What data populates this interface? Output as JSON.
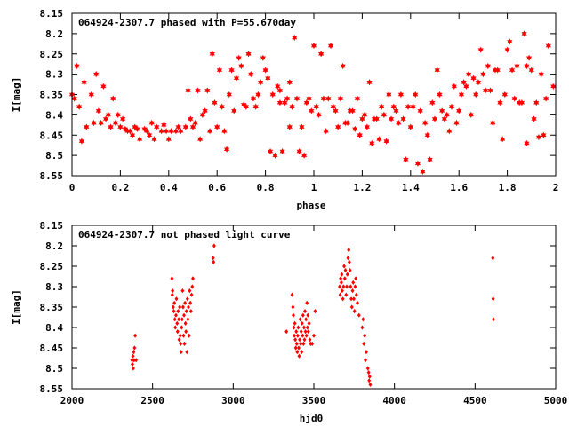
{
  "chart_data": [
    {
      "type": "scatter",
      "title": "064924-2307.7 phased with P=55.670day",
      "xlabel": "phase",
      "ylabel": "I[mag]",
      "xlim": [
        0,
        2
      ],
      "ylim": [
        8.55,
        8.15
      ],
      "y_inverted": true,
      "xticks": [
        "0",
        "0.2",
        "0.4",
        "0.6",
        "0.8",
        "1",
        "1.2",
        "1.4",
        "1.6",
        "1.8",
        "2"
      ],
      "yticks": [
        "8.15",
        "8.2",
        "8.25",
        "8.3",
        "8.35",
        "8.4",
        "8.45",
        "8.5",
        "8.55"
      ],
      "grid": false,
      "legend": "none",
      "marker": "filled-star",
      "color": "#ff0000",
      "points": [
        [
          0.0,
          8.35
        ],
        [
          0.01,
          8.36
        ],
        [
          0.02,
          8.28
        ],
        [
          0.03,
          8.38
        ],
        [
          0.04,
          8.465
        ],
        [
          0.05,
          8.32
        ],
        [
          0.06,
          8.43
        ],
        [
          0.08,
          8.35
        ],
        [
          0.09,
          8.42
        ],
        [
          0.1,
          8.3
        ],
        [
          0.11,
          8.39
        ],
        [
          0.12,
          8.42
        ],
        [
          0.13,
          8.33
        ],
        [
          0.14,
          8.41
        ],
        [
          0.15,
          8.4
        ],
        [
          0.16,
          8.43
        ],
        [
          0.17,
          8.36
        ],
        [
          0.18,
          8.42
        ],
        [
          0.19,
          8.4
        ],
        [
          0.2,
          8.43
        ],
        [
          0.21,
          8.41
        ],
        [
          0.22,
          8.435
        ],
        [
          0.23,
          8.44
        ],
        [
          0.24,
          8.44
        ],
        [
          0.25,
          8.45
        ],
        [
          0.26,
          8.43
        ],
        [
          0.27,
          8.435
        ],
        [
          0.28,
          8.46
        ],
        [
          0.3,
          8.435
        ],
        [
          0.31,
          8.44
        ],
        [
          0.32,
          8.45
        ],
        [
          0.33,
          8.42
        ],
        [
          0.34,
          8.46
        ],
        [
          0.35,
          8.43
        ],
        [
          0.37,
          8.44
        ],
        [
          0.38,
          8.425
        ],
        [
          0.39,
          8.44
        ],
        [
          0.4,
          8.46
        ],
        [
          0.41,
          8.44
        ],
        [
          0.43,
          8.44
        ],
        [
          0.44,
          8.43
        ],
        [
          0.45,
          8.44
        ],
        [
          0.47,
          8.43
        ],
        [
          0.48,
          8.34
        ],
        [
          0.49,
          8.41
        ],
        [
          0.5,
          8.43
        ],
        [
          0.51,
          8.42
        ],
        [
          0.52,
          8.34
        ],
        [
          0.53,
          8.46
        ],
        [
          0.54,
          8.4
        ],
        [
          0.55,
          8.39
        ],
        [
          0.56,
          8.34
        ],
        [
          0.57,
          8.44
        ],
        [
          0.58,
          8.25
        ],
        [
          0.59,
          8.37
        ],
        [
          0.6,
          8.43
        ],
        [
          0.61,
          8.29
        ],
        [
          0.62,
          8.38
        ],
        [
          0.63,
          8.44
        ],
        [
          0.64,
          8.485
        ],
        [
          0.65,
          8.35
        ],
        [
          0.66,
          8.29
        ],
        [
          0.67,
          8.39
        ],
        [
          0.68,
          8.31
        ],
        [
          0.69,
          8.26
        ],
        [
          0.7,
          8.28
        ],
        [
          0.71,
          8.375
        ],
        [
          0.72,
          8.38
        ],
        [
          0.73,
          8.25
        ],
        [
          0.74,
          8.3
        ],
        [
          0.75,
          8.36
        ],
        [
          0.76,
          8.38
        ],
        [
          0.77,
          8.35
        ],
        [
          0.78,
          8.32
        ],
        [
          0.79,
          8.26
        ],
        [
          0.8,
          8.29
        ],
        [
          0.81,
          8.31
        ],
        [
          0.82,
          8.49
        ],
        [
          0.83,
          8.35
        ],
        [
          0.84,
          8.5
        ],
        [
          0.85,
          8.33
        ],
        [
          0.86,
          8.37
        ],
        [
          0.86,
          8.34
        ],
        [
          0.87,
          8.49
        ],
        [
          0.88,
          8.37
        ],
        [
          0.89,
          8.36
        ],
        [
          0.9,
          8.43
        ],
        [
          0.9,
          8.32
        ],
        [
          0.91,
          8.38
        ],
        [
          0.92,
          8.21
        ],
        [
          0.93,
          8.36
        ],
        [
          0.94,
          8.49
        ],
        [
          0.95,
          8.43
        ],
        [
          0.96,
          8.5
        ],
        [
          0.97,
          8.37
        ],
        [
          0.98,
          8.36
        ],
        [
          0.99,
          8.39
        ],
        [
          1.0,
          8.23
        ],
        [
          1.01,
          8.38
        ],
        [
          1.02,
          8.4
        ],
        [
          1.03,
          8.25
        ],
        [
          1.04,
          8.36
        ],
        [
          1.05,
          8.44
        ],
        [
          1.06,
          8.36
        ],
        [
          1.07,
          8.23
        ],
        [
          1.08,
          8.38
        ],
        [
          1.09,
          8.39
        ],
        [
          1.1,
          8.43
        ],
        [
          1.11,
          8.36
        ],
        [
          1.12,
          8.28
        ],
        [
          1.13,
          8.42
        ],
        [
          1.14,
          8.42
        ],
        [
          1.15,
          8.39
        ],
        [
          1.16,
          8.39
        ],
        [
          1.17,
          8.435
        ],
        [
          1.18,
          8.36
        ],
        [
          1.19,
          8.45
        ],
        [
          1.2,
          8.41
        ],
        [
          1.21,
          8.4
        ],
        [
          1.22,
          8.43
        ],
        [
          1.23,
          8.32
        ],
        [
          1.24,
          8.47
        ],
        [
          1.25,
          8.41
        ],
        [
          1.26,
          8.41
        ],
        [
          1.27,
          8.46
        ],
        [
          1.28,
          8.38
        ],
        [
          1.29,
          8.4
        ],
        [
          1.3,
          8.465
        ],
        [
          1.31,
          8.35
        ],
        [
          1.32,
          8.41
        ],
        [
          1.33,
          8.38
        ],
        [
          1.34,
          8.39
        ],
        [
          1.35,
          8.42
        ],
        [
          1.36,
          8.35
        ],
        [
          1.37,
          8.41
        ],
        [
          1.38,
          8.51
        ],
        [
          1.39,
          8.38
        ],
        [
          1.4,
          8.43
        ],
        [
          1.41,
          8.38
        ],
        [
          1.42,
          8.35
        ],
        [
          1.43,
          8.52
        ],
        [
          1.44,
          8.39
        ],
        [
          1.45,
          8.54
        ],
        [
          1.46,
          8.42
        ],
        [
          1.47,
          8.45
        ],
        [
          1.48,
          8.51
        ],
        [
          1.49,
          8.37
        ],
        [
          1.5,
          8.41
        ],
        [
          1.51,
          8.29
        ],
        [
          1.52,
          8.35
        ],
        [
          1.53,
          8.39
        ],
        [
          1.54,
          8.41
        ],
        [
          1.55,
          8.4
        ],
        [
          1.56,
          8.44
        ],
        [
          1.57,
          8.38
        ],
        [
          1.58,
          8.33
        ],
        [
          1.59,
          8.42
        ],
        [
          1.6,
          8.39
        ],
        [
          1.61,
          8.35
        ],
        [
          1.62,
          8.32
        ],
        [
          1.63,
          8.33
        ],
        [
          1.64,
          8.3
        ],
        [
          1.65,
          8.4
        ],
        [
          1.66,
          8.31
        ],
        [
          1.67,
          8.35
        ],
        [
          1.68,
          8.32
        ],
        [
          1.69,
          8.24
        ],
        [
          1.7,
          8.3
        ],
        [
          1.71,
          8.34
        ],
        [
          1.72,
          8.28
        ],
        [
          1.73,
          8.34
        ],
        [
          1.74,
          8.42
        ],
        [
          1.75,
          8.29
        ],
        [
          1.76,
          8.29
        ],
        [
          1.77,
          8.37
        ],
        [
          1.78,
          8.46
        ],
        [
          1.79,
          8.35
        ],
        [
          1.8,
          8.24
        ],
        [
          1.81,
          8.22
        ],
        [
          1.82,
          8.29
        ],
        [
          1.83,
          8.36
        ],
        [
          1.84,
          8.28
        ],
        [
          1.85,
          8.37
        ],
        [
          1.86,
          8.37
        ],
        [
          1.87,
          8.2
        ],
        [
          1.88,
          8.47
        ],
        [
          1.88,
          8.28
        ],
        [
          1.89,
          8.26
        ],
        [
          1.9,
          8.29
        ],
        [
          1.91,
          8.41
        ],
        [
          1.92,
          8.37
        ],
        [
          1.93,
          8.455
        ],
        [
          1.94,
          8.3
        ],
        [
          1.95,
          8.45
        ],
        [
          1.96,
          8.36
        ],
        [
          1.97,
          8.23
        ],
        [
          1.99,
          8.33
        ]
      ]
    },
    {
      "type": "scatter",
      "title": "064924-2307.7 not phased light curve",
      "xlabel": "hjd0",
      "ylabel": "I[mag]",
      "xlim": [
        2000,
        5000
      ],
      "ylim": [
        8.55,
        8.15
      ],
      "y_inverted": true,
      "xticks": [
        "2000",
        "2500",
        "3000",
        "3500",
        "4000",
        "4500",
        "5000"
      ],
      "yticks": [
        "8.15",
        "8.2",
        "8.25",
        "8.3",
        "8.35",
        "8.4",
        "8.45",
        "8.5",
        "8.55"
      ],
      "grid": false,
      "legend": "none",
      "marker": "small-filled-diamond",
      "color": "#ff0000",
      "points": [
        [
          2372,
          8.48
        ],
        [
          2375,
          8.49
        ],
        [
          2378,
          8.47
        ],
        [
          2380,
          8.5
        ],
        [
          2383,
          8.46
        ],
        [
          2385,
          8.48
        ],
        [
          2388,
          8.45
        ],
        [
          2392,
          8.42
        ],
        [
          2398,
          8.48
        ],
        [
          2620,
          8.28
        ],
        [
          2622,
          8.32
        ],
        [
          2624,
          8.31
        ],
        [
          2628,
          8.35
        ],
        [
          2632,
          8.36
        ],
        [
          2635,
          8.34
        ],
        [
          2638,
          8.38
        ],
        [
          2641,
          8.4
        ],
        [
          2645,
          8.37
        ],
        [
          2648,
          8.33
        ],
        [
          2652,
          8.39
        ],
        [
          2655,
          8.41
        ],
        [
          2658,
          8.36
        ],
        [
          2662,
          8.38
        ],
        [
          2665,
          8.43
        ],
        [
          2668,
          8.35
        ],
        [
          2671,
          8.42
        ],
        [
          2674,
          8.44
        ],
        [
          2677,
          8.46
        ],
        [
          2680,
          8.4
        ],
        [
          2683,
          8.38
        ],
        [
          2686,
          8.31
        ],
        [
          2689,
          8.35
        ],
        [
          2692,
          8.42
        ],
        [
          2695,
          8.37
        ],
        [
          2698,
          8.44
        ],
        [
          2701,
          8.34
        ],
        [
          2704,
          8.39
        ],
        [
          2707,
          8.41
        ],
        [
          2710,
          8.36
        ],
        [
          2713,
          8.46
        ],
        [
          2716,
          8.33
        ],
        [
          2719,
          8.38
        ],
        [
          2722,
          8.35
        ],
        [
          2726,
          8.42
        ],
        [
          2730,
          8.31
        ],
        [
          2734,
          8.34
        ],
        [
          2738,
          8.36
        ],
        [
          2742,
          8.32
        ],
        [
          2746,
          8.3
        ],
        [
          2750,
          8.28
        ],
        [
          2875,
          8.23
        ],
        [
          2878,
          8.24
        ],
        [
          2882,
          8.2
        ],
        [
          3330,
          8.41
        ],
        [
          3365,
          8.32
        ],
        [
          3370,
          8.35
        ],
        [
          3373,
          8.37
        ],
        [
          3376,
          8.4
        ],
        [
          3379,
          8.42
        ],
        [
          3382,
          8.39
        ],
        [
          3385,
          8.43
        ],
        [
          3388,
          8.45
        ],
        [
          3391,
          8.41
        ],
        [
          3394,
          8.44
        ],
        [
          3397,
          8.46
        ],
        [
          3400,
          8.42
        ],
        [
          3403,
          8.4
        ],
        [
          3406,
          8.45
        ],
        [
          3409,
          8.47
        ],
        [
          3412,
          8.43
        ],
        [
          3415,
          8.38
        ],
        [
          3418,
          8.44
        ],
        [
          3421,
          8.41
        ],
        [
          3424,
          8.46
        ],
        [
          3427,
          8.39
        ],
        [
          3430,
          8.42
        ],
        [
          3433,
          8.37
        ],
        [
          3436,
          8.44
        ],
        [
          3439,
          8.4
        ],
        [
          3442,
          8.43
        ],
        [
          3445,
          8.36
        ],
        [
          3448,
          8.41
        ],
        [
          3451,
          8.38
        ],
        [
          3454,
          8.42
        ],
        [
          3457,
          8.34
        ],
        [
          3460,
          8.4
        ],
        [
          3463,
          8.37
        ],
        [
          3466,
          8.41
        ],
        [
          3470,
          8.39
        ],
        [
          3475,
          8.43
        ],
        [
          3480,
          8.44
        ],
        [
          3490,
          8.44
        ],
        [
          3500,
          8.42
        ],
        [
          3508,
          8.36
        ],
        [
          3660,
          8.3
        ],
        [
          3663,
          8.32
        ],
        [
          3666,
          8.28
        ],
        [
          3670,
          8.29
        ],
        [
          3673,
          8.27
        ],
        [
          3676,
          8.31
        ],
        [
          3680,
          8.33
        ],
        [
          3684,
          8.3
        ],
        [
          3688,
          8.25
        ],
        [
          3692,
          8.28
        ],
        [
          3696,
          8.26
        ],
        [
          3700,
          8.32
        ],
        [
          3704,
          8.3
        ],
        [
          3708,
          8.27
        ],
        [
          3712,
          8.23
        ],
        [
          3716,
          8.21
        ],
        [
          3720,
          8.24
        ],
        [
          3724,
          8.26
        ],
        [
          3728,
          8.3
        ],
        [
          3732,
          8.33
        ],
        [
          3736,
          8.35
        ],
        [
          3740,
          8.31
        ],
        [
          3744,
          8.29
        ],
        [
          3748,
          8.33
        ],
        [
          3752,
          8.36
        ],
        [
          3756,
          8.3
        ],
        [
          3760,
          8.28
        ],
        [
          3764,
          8.32
        ],
        [
          3770,
          8.34
        ],
        [
          3780,
          8.37
        ],
        [
          3800,
          8.4
        ],
        [
          3805,
          8.38
        ],
        [
          3810,
          8.44
        ],
        [
          3815,
          8.42
        ],
        [
          3820,
          8.48
        ],
        [
          3825,
          8.46
        ],
        [
          3835,
          8.5
        ],
        [
          3840,
          8.51
        ],
        [
          3843,
          8.53
        ],
        [
          3846,
          8.52
        ],
        [
          3850,
          8.54
        ],
        [
          4610,
          8.23
        ],
        [
          4612,
          8.33
        ],
        [
          4614,
          8.38
        ]
      ]
    }
  ]
}
